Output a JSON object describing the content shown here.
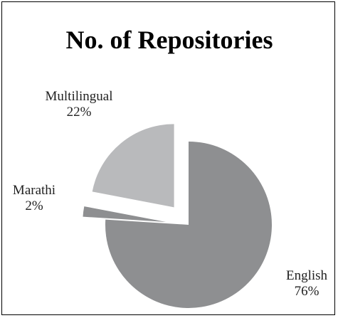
{
  "chart_data": {
    "type": "pie",
    "title": "No. of Repositories",
    "slices": [
      {
        "label": "English",
        "value": 76,
        "percent_label": "76%",
        "color": "#8e8f91"
      },
      {
        "label": "Marathi",
        "value": 2,
        "percent_label": "2%",
        "color": "#8e8f91"
      },
      {
        "label": "Multilingual",
        "value": 22,
        "percent_label": "22%",
        "color": "#b9babc"
      }
    ],
    "legend": "none"
  }
}
